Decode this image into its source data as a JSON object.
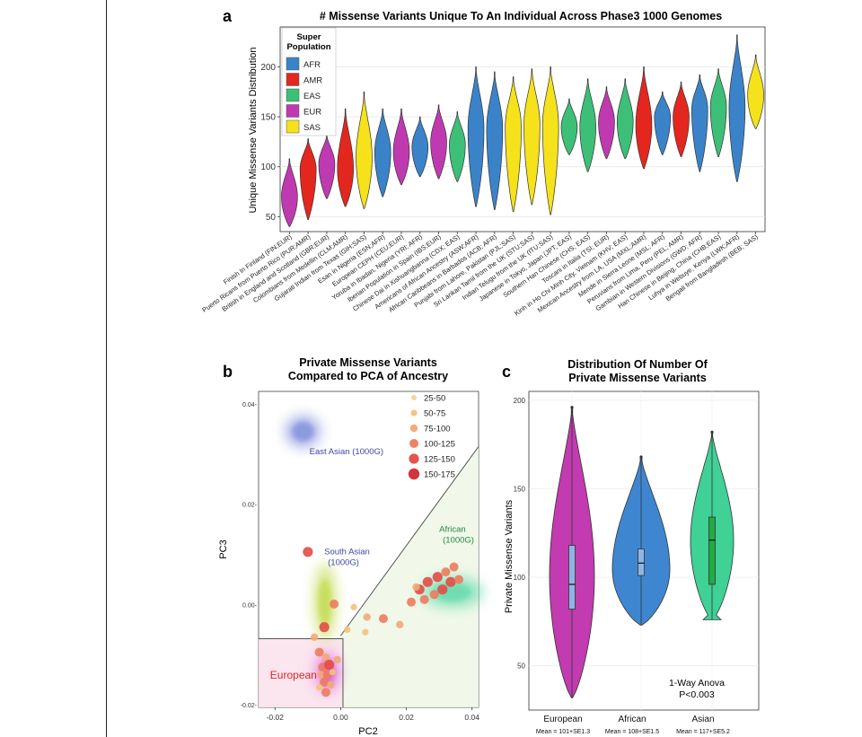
{
  "panel_letters": {
    "a": "a",
    "b": "b",
    "c": "c"
  },
  "colors": {
    "AFR": "#3a83c9",
    "AMR": "#e3271f",
    "EAS": "#3dbf77",
    "EUR": "#bf3ab0",
    "SAS": "#f5e21a"
  },
  "chart_data": [
    {
      "type": "violin",
      "panel": "a",
      "title": "# Missense Variants Unique To An Individual Across Phase3 1000 Genomes",
      "ylabel": "Unique Missense Variants Distribution",
      "ylim": [
        35,
        240
      ],
      "yticks": [
        50,
        100,
        150,
        200
      ],
      "legend": {
        "title_line1": "Super",
        "title_line2": "Population",
        "entries": [
          "AFR",
          "AMR",
          "EAS",
          "EUR",
          "SAS"
        ],
        "placement": "top-left"
      },
      "populations": [
        {
          "label": "Finish In Finland (FIN;EUR)",
          "group": "EUR",
          "min": 40,
          "max": 108,
          "mode": 70
        },
        {
          "label": "Puerto Ricans from Puerto Rico (PUR;AMR)",
          "group": "AMR",
          "min": 47,
          "max": 128,
          "mode": 98
        },
        {
          "label": "British in England and Scotland (GBR;EUR)",
          "group": "EUR",
          "min": 68,
          "max": 132,
          "mode": 103
        },
        {
          "label": "Colombians from Medellin (CLM;AMR)",
          "group": "AMR",
          "min": 60,
          "max": 158,
          "mode": 98
        },
        {
          "label": "Gujarati Indian from Texas (GIH;SAS)",
          "group": "SAS",
          "min": 58,
          "max": 175,
          "mode": 110
        },
        {
          "label": "Esan in Nigeria (ESN;AFR)",
          "group": "AFR",
          "min": 70,
          "max": 158,
          "mode": 115
        },
        {
          "label": "European CEPH (CEU;EUR)",
          "group": "EUR",
          "min": 82,
          "max": 158,
          "mode": 115
        },
        {
          "label": "Yoruba in Ibadan, Nigeria (YRI; AFR)",
          "group": "AFR",
          "min": 90,
          "max": 150,
          "mode": 120
        },
        {
          "label": "Iberian Population in Spain (IBS;EUR)",
          "group": "EUR",
          "min": 88,
          "max": 162,
          "mode": 125
        },
        {
          "label": "Chinese Dai in Xishuangbanna (CDX; EAS)",
          "group": "EAS",
          "min": 85,
          "max": 155,
          "mode": 122
        },
        {
          "label": "Americans of African Ancestry (ASW;AFR)",
          "group": "AFR",
          "min": 60,
          "max": 200,
          "mode": 138
        },
        {
          "label": "African Caribbeans in Barbados (ACB; AFR)",
          "group": "AFR",
          "min": 57,
          "max": 195,
          "mode": 138
        },
        {
          "label": "Punjabi from Lahore, Pakistan (PJL;SAS)",
          "group": "SAS",
          "min": 55,
          "max": 190,
          "mode": 140
        },
        {
          "label": "Sri Lankan Tamil from the UK (STU;SAS)",
          "group": "SAS",
          "min": 62,
          "max": 198,
          "mode": 142
        },
        {
          "label": "Indian Telugu from the UK (ITU;SAS)",
          "group": "SAS",
          "min": 52,
          "max": 200,
          "mode": 142
        },
        {
          "label": "Japanese in Tokyo, Japan (JPT; EAS)",
          "group": "EAS",
          "min": 112,
          "max": 168,
          "mode": 140
        },
        {
          "label": "Southern Han Chinese (CHS; EAS)",
          "group": "EAS",
          "min": 95,
          "max": 188,
          "mode": 140
        },
        {
          "label": "Toscani in Italia (TSI; EUR)",
          "group": "EUR",
          "min": 108,
          "max": 180,
          "mode": 145
        },
        {
          "label": "Kinh in Ho Chi Minh City, Vietnam (KHV; EAS)",
          "group": "EAS",
          "min": 108,
          "max": 188,
          "mode": 145
        },
        {
          "label": "Mexican Ancestry from LA, USA (MXL;AMR)",
          "group": "AMR",
          "min": 98,
          "max": 200,
          "mode": 142
        },
        {
          "label": "Mende in Sierra Leone (MSL; AFR)",
          "group": "AFR",
          "min": 112,
          "max": 175,
          "mode": 150
        },
        {
          "label": "Peruvians from Lima, Peru (PEL; AMR)",
          "group": "AMR",
          "min": 110,
          "max": 185,
          "mode": 150
        },
        {
          "label": "Gambian in Western Divisions (GWD; AFR)",
          "group": "AFR",
          "min": 95,
          "max": 192,
          "mode": 158
        },
        {
          "label": "Han Chinese in Beijing, China (CHB;EAS)",
          "group": "EAS",
          "min": 110,
          "max": 198,
          "mode": 160
        },
        {
          "label": "Luhya in Webuye, Kenya (LWK;AFR)",
          "group": "AFR",
          "min": 85,
          "max": 232,
          "mode": 160
        },
        {
          "label": "Bengali from Bangladesh (BEB; SAS)",
          "group": "SAS",
          "min": 138,
          "max": 212,
          "mode": 172
        }
      ]
    },
    {
      "type": "scatter",
      "panel": "b",
      "title_line1": "Private Missense Variants",
      "title_line2": "Compared to PCA of Ancestry",
      "xlabel": "PC2",
      "ylabel": "PC3",
      "xlim": [
        -0.025,
        0.042
      ],
      "ylim": [
        -0.0205,
        0.0425
      ],
      "xticks": [
        -0.02,
        0.0,
        0.02,
        0.04
      ],
      "xtick_labels": [
        "-0.02",
        "0.00",
        "0.02",
        "0.04"
      ],
      "yticks": [
        -0.02,
        0.0,
        0.02,
        0.04
      ],
      "ytick_labels": [
        "-0.02-",
        "0.00-",
        "0.02-",
        "0.04-"
      ],
      "clusters": [
        {
          "name": "East Asian (1000G)",
          "line1": "East Asian (1000G)",
          "line2": "",
          "color": "#6e7fd6",
          "cx": -0.0115,
          "cy": 0.0345,
          "rx": 0.0055,
          "ry": 0.0033,
          "label_color": "#3b4aa8"
        },
        {
          "name": "South Asian (1000G)",
          "line1": "South Asian",
          "line2": "(1000G)",
          "color": "#b8d630",
          "cx": -0.0048,
          "cy": 0.0005,
          "rx": 0.0035,
          "ry": 0.0078,
          "label_color": "#3b4aa8"
        },
        {
          "name": "African (1000G)",
          "line1": "African",
          "line2": "(1000G)",
          "color": "#4fd6a3",
          "cx": 0.034,
          "cy": 0.0025,
          "rx": 0.0095,
          "ry": 0.0032,
          "label_color": "#1f8a3d"
        },
        {
          "name": "European",
          "line1": "European",
          "line2": "",
          "color": "#d24fd6",
          "cx": -0.004,
          "cy": -0.0135,
          "rx": 0.0038,
          "ry": 0.004,
          "label_color": "#e02424"
        }
      ],
      "legend": {
        "placement": "top-right",
        "bins": [
          "25-50",
          "50-75",
          "75-100",
          "100-125",
          "125-150",
          "150-175"
        ],
        "bin_colors": [
          "#f7d48e",
          "#f5c07c",
          "#f2a877",
          "#ed7b5d",
          "#e24d45",
          "#d02a32"
        ]
      },
      "points": [
        {
          "x": -0.01,
          "y": 0.0105,
          "bin": 4
        },
        {
          "x": -0.002,
          "y": 0.0001,
          "bin": 3
        },
        {
          "x": 0.004,
          "y": -0.0005,
          "bin": 1
        },
        {
          "x": 0.008,
          "y": -0.0025,
          "bin": 2
        },
        {
          "x": 0.013,
          "y": -0.0028,
          "bin": 3
        },
        {
          "x": 0.002,
          "y": -0.005,
          "bin": 1
        },
        {
          "x": 0.0075,
          "y": -0.0055,
          "bin": 1
        },
        {
          "x": 0.018,
          "y": -0.004,
          "bin": 2
        },
        {
          "x": 0.0215,
          "y": 0.0005,
          "bin": 3
        },
        {
          "x": 0.024,
          "y": 0.003,
          "bin": 4
        },
        {
          "x": 0.0255,
          "y": 0.001,
          "bin": 3
        },
        {
          "x": 0.0265,
          "y": 0.0045,
          "bin": 4
        },
        {
          "x": 0.0285,
          "y": 0.002,
          "bin": 3
        },
        {
          "x": 0.0295,
          "y": 0.0055,
          "bin": 4
        },
        {
          "x": 0.031,
          "y": 0.003,
          "bin": 4
        },
        {
          "x": 0.032,
          "y": 0.0065,
          "bin": 3
        },
        {
          "x": 0.0335,
          "y": 0.0045,
          "bin": 4
        },
        {
          "x": 0.0345,
          "y": 0.0075,
          "bin": 3
        },
        {
          "x": 0.023,
          "y": 0.0035,
          "bin": 2
        },
        {
          "x": 0.036,
          "y": 0.005,
          "bin": 3
        },
        {
          "x": -0.0065,
          "y": -0.0095,
          "bin": 3
        },
        {
          "x": -0.0045,
          "y": -0.0105,
          "bin": 2
        },
        {
          "x": -0.0055,
          "y": -0.0125,
          "bin": 3
        },
        {
          "x": -0.0035,
          "y": -0.012,
          "bin": 4
        },
        {
          "x": -0.006,
          "y": -0.014,
          "bin": 2
        },
        {
          "x": -0.004,
          "y": -0.014,
          "bin": 3
        },
        {
          "x": -0.005,
          "y": -0.0155,
          "bin": 3
        },
        {
          "x": -0.003,
          "y": -0.016,
          "bin": 2
        },
        {
          "x": -0.0065,
          "y": -0.0165,
          "bin": 1
        },
        {
          "x": -0.0045,
          "y": -0.0175,
          "bin": 3
        },
        {
          "x": -0.0025,
          "y": -0.0135,
          "bin": 1
        },
        {
          "x": -0.001,
          "y": -0.011,
          "bin": 2
        },
        {
          "x": -0.005,
          "y": -0.0045,
          "bin": 4
        },
        {
          "x": -0.008,
          "y": -0.0065,
          "bin": 2
        }
      ]
    },
    {
      "type": "violin",
      "panel": "c",
      "title_line1": "Distribution Of Number Of",
      "title_line2": "Private Missense Variants",
      "ylabel": "Private Missense Variants",
      "ylim": [
        25,
        205
      ],
      "yticks": [
        50,
        100,
        150,
        200
      ],
      "groups": [
        {
          "name": "European",
          "stat": "Mean = 101+SE1.3",
          "color": "#c23bb0",
          "min": 32,
          "max": 196,
          "q1": 82,
          "median": 96,
          "q3": 118,
          "wlo": 32,
          "whi": 196
        },
        {
          "name": "African",
          "stat": "Mean = 108+SE1.5",
          "color": "#3f86d1",
          "min": 73,
          "max": 168,
          "q1": 101,
          "median": 108,
          "q3": 116,
          "wlo": 73,
          "whi": 168
        },
        {
          "name": "Asian",
          "stat": "Mean = 117+SE5.2",
          "color": "#3fd195",
          "min": 76,
          "max": 182,
          "q1": 96,
          "median": 121,
          "q3": 134,
          "wlo": 76,
          "whi": 182
        }
      ],
      "annotation_line1": "1-Way Anova",
      "annotation_line2": "P<0.003"
    }
  ]
}
